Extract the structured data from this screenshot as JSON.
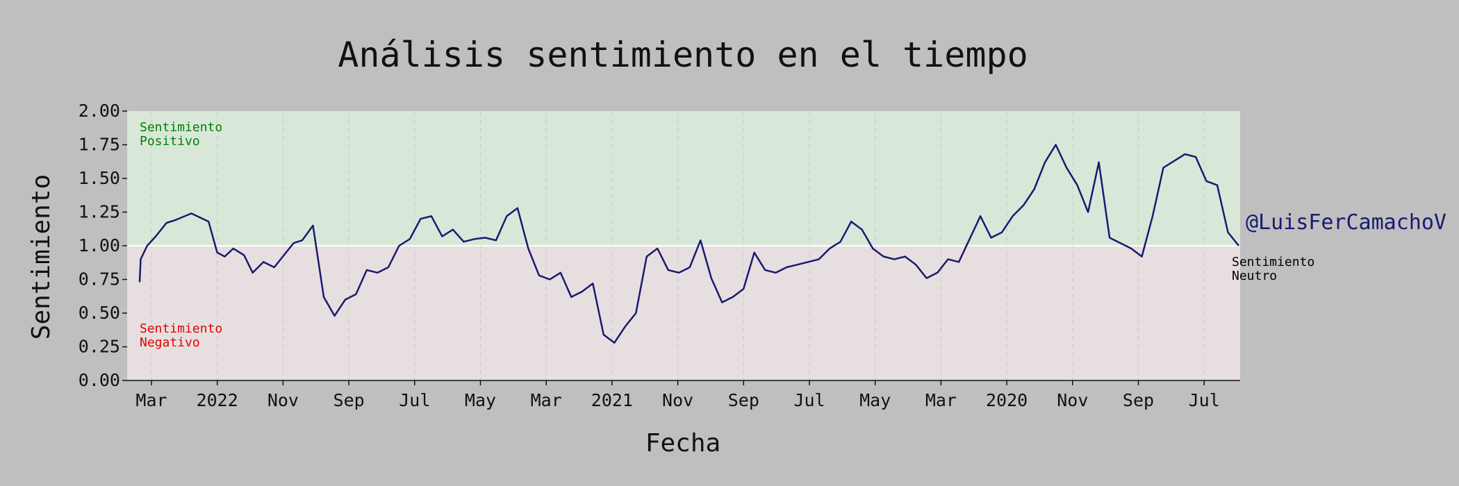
{
  "chart_data": {
    "type": "line",
    "title": "Análisis sentimiento en el tiempo",
    "xlabel": "Fecha",
    "ylabel": "Sentimiento",
    "ylim": [
      0,
      2
    ],
    "yticks": [
      "0.00",
      "0.25",
      "0.50",
      "0.75",
      "1.00",
      "1.25",
      "1.50",
      "1.75",
      "2.00"
    ],
    "x_axis_order": "descending (newest date at left)",
    "xticks": [
      "Mar",
      "2022",
      "Nov",
      "Sep",
      "Jul",
      "May",
      "Mar",
      "2021",
      "Nov",
      "Sep",
      "Jul",
      "May",
      "Mar",
      "2020",
      "Nov",
      "Sep",
      "Jul"
    ],
    "grid": "vertical dashed at x ticks",
    "neutral_line": 1.0,
    "regions": {
      "positive": {
        "label": "Sentimiento\nPositivo",
        "range": [
          1,
          2
        ],
        "color": "#d9e7d9",
        "label_color": "#008000"
      },
      "negative": {
        "label": "Sentimiento\nNegativo",
        "range": [
          0,
          1
        ],
        "color": "#e7dfdf",
        "label_color": "#e00000"
      },
      "neutral": {
        "label": "Sentimiento\nNeutro",
        "label_color": "#000000"
      }
    },
    "watermark": "@LuisFerCamachoV",
    "line_color": "#191970",
    "series": [
      {
        "x": [
          "2022-03-25",
          "2022-03-24",
          "2022-03-18",
          "2022-03-10",
          "2022-02-28",
          "2022-02-20",
          "2022-02-05",
          "2022-01-20",
          "2022-01-12",
          "2022-01-05",
          "2021-12-28",
          "2021-12-18",
          "2021-12-10",
          "2021-11-30",
          "2021-11-20",
          "2021-11-12",
          "2021-11-02",
          "2021-10-25",
          "2021-10-15",
          "2021-10-05",
          "2021-09-25",
          "2021-09-15",
          "2021-09-05",
          "2021-08-26",
          "2021-08-16",
          "2021-08-06",
          "2021-07-27",
          "2021-07-17",
          "2021-07-07",
          "2021-06-27",
          "2021-06-17",
          "2021-06-07",
          "2021-05-28",
          "2021-05-18",
          "2021-05-08",
          "2021-04-28",
          "2021-04-18",
          "2021-04-08",
          "2021-03-29",
          "2021-03-19",
          "2021-03-09",
          "2021-02-27",
          "2021-02-17",
          "2021-02-07",
          "2021-01-28",
          "2021-01-18",
          "2021-01-08",
          "2020-12-29",
          "2020-12-19",
          "2020-12-09",
          "2020-11-29",
          "2020-11-19",
          "2020-11-09",
          "2020-10-30",
          "2020-10-20",
          "2020-10-10",
          "2020-09-30",
          "2020-09-20",
          "2020-09-10",
          "2020-08-31",
          "2020-08-21",
          "2020-08-11",
          "2020-08-01",
          "2020-07-22",
          "2020-07-12",
          "2020-07-02",
          "2020-06-22",
          "2020-06-12",
          "2020-06-02",
          "2020-05-23",
          "2020-05-13",
          "2020-05-03",
          "2020-04-23",
          "2020-04-13",
          "2020-04-03",
          "2020-03-24",
          "2020-03-14",
          "2020-03-04",
          "2020-02-23",
          "2020-02-13",
          "2020-02-03",
          "2020-01-24",
          "2020-01-14",
          "2020-01-04",
          "2019-12-25",
          "2019-12-15",
          "2019-12-05",
          "2019-11-25",
          "2019-11-15",
          "2019-11-05",
          "2019-10-26",
          "2019-10-16",
          "2019-10-06",
          "2019-09-26",
          "2019-09-16",
          "2019-09-06",
          "2019-08-27",
          "2019-08-17",
          "2019-08-07",
          "2019-07-28",
          "2019-07-18",
          "2019-07-08",
          "2019-06-28",
          "2019-06-18",
          "2019-06-08"
        ],
        "values": [
          0.73,
          0.9,
          1.0,
          1.07,
          1.17,
          1.19,
          1.24,
          1.18,
          0.95,
          0.92,
          0.98,
          0.93,
          0.8,
          0.88,
          0.84,
          0.92,
          1.02,
          1.04,
          1.15,
          0.62,
          0.48,
          0.6,
          0.64,
          0.82,
          0.8,
          0.84,
          1.0,
          1.05,
          1.2,
          1.22,
          1.07,
          1.12,
          1.03,
          1.05,
          1.06,
          1.04,
          1.22,
          1.28,
          0.98,
          0.78,
          0.75,
          0.8,
          0.62,
          0.66,
          0.72,
          0.34,
          0.28,
          0.4,
          0.5,
          0.92,
          0.98,
          0.82,
          0.8,
          0.84,
          1.04,
          0.76,
          0.58,
          0.62,
          0.68,
          0.95,
          0.82,
          0.8,
          0.84,
          0.86,
          0.88,
          0.9,
          0.98,
          1.03,
          1.18,
          1.12,
          0.98,
          0.92,
          0.9,
          0.92,
          0.86,
          0.76,
          0.8,
          0.9,
          0.88,
          1.05,
          1.22,
          1.06,
          1.1,
          1.22,
          1.3,
          1.42,
          1.62,
          1.75,
          1.58,
          1.45,
          1.25,
          1.62,
          1.06,
          1.02,
          0.98,
          0.92,
          1.22,
          1.58,
          1.63,
          1.68,
          1.66,
          1.48,
          1.45,
          1.1,
          1.0
        ]
      }
    ]
  }
}
